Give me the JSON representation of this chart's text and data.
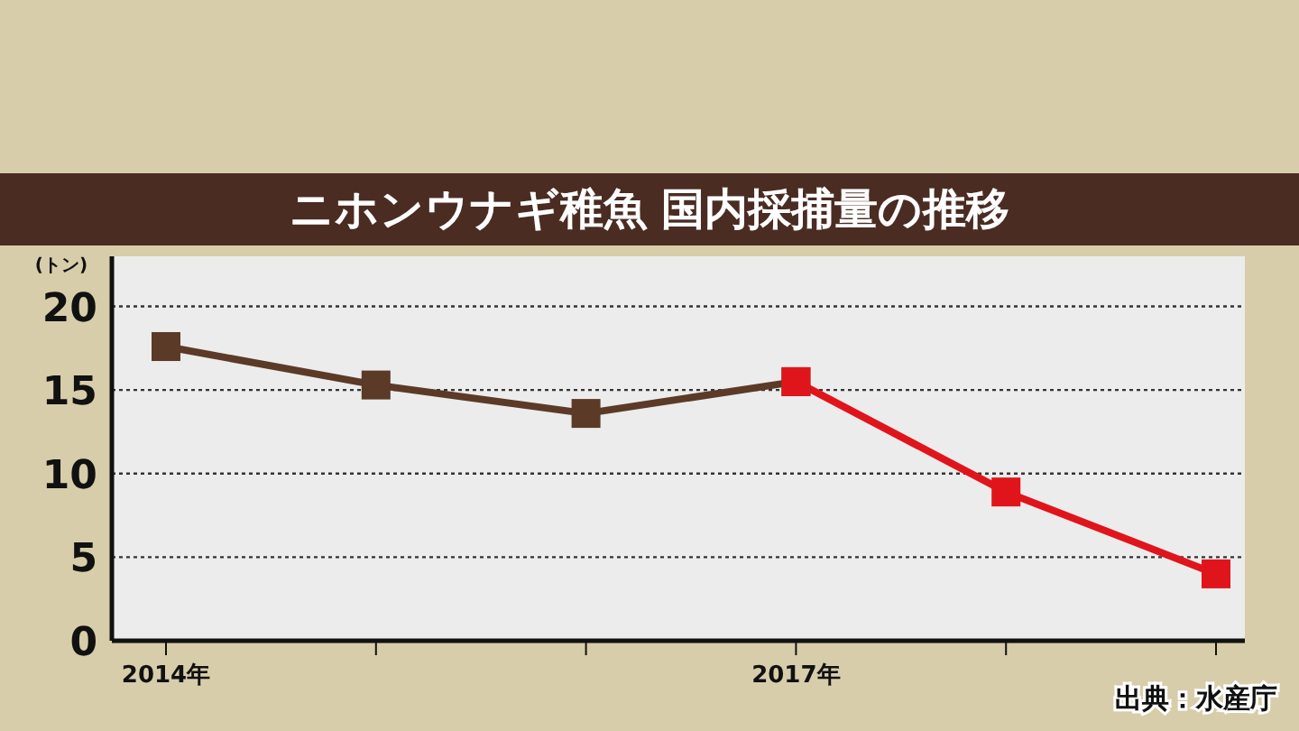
{
  "chart_data": {
    "type": "line",
    "title": "ニホンウナギ稚魚 国内採捕量の推移",
    "ylabel": "(トン)",
    "categories": [
      "2014年",
      null,
      null,
      "2017年",
      null,
      null
    ],
    "series": [
      {
        "color": "#5c3a28",
        "values": [
          17.6,
          15.3,
          13.6,
          15.5,
          null,
          null
        ]
      },
      {
        "color": "#e0151b",
        "values": [
          null,
          null,
          null,
          15.5,
          8.9,
          4.0
        ]
      }
    ],
    "ylim": [
      0,
      23
    ],
    "yticks": [
      0,
      5,
      10,
      15,
      20
    ],
    "grid": "y",
    "marker": "square",
    "line_style": "solid",
    "annotations": [
      "出典：水産庁"
    ]
  }
}
